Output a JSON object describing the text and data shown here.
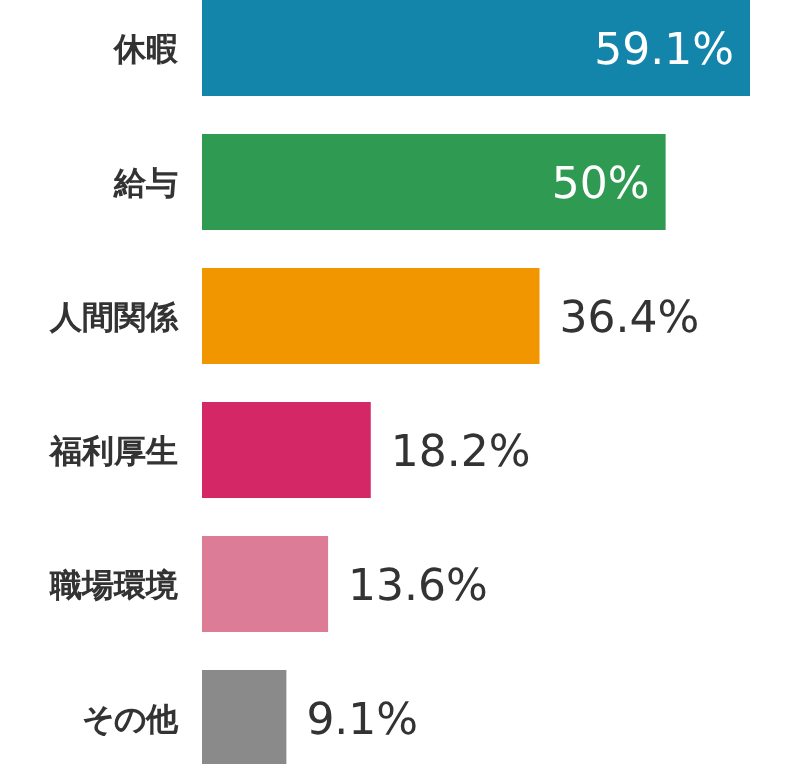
{
  "chart_data": {
    "type": "bar",
    "orientation": "horizontal",
    "categories": [
      "休暇",
      "給与",
      "人間関係",
      "福利厚生",
      "職場環境",
      "その他"
    ],
    "values": [
      59.1,
      50,
      36.4,
      18.2,
      13.6,
      9.1
    ],
    "value_labels": [
      "59.1%",
      "50%",
      "36.4%",
      "18.2%",
      "13.6%",
      "9.1%"
    ],
    "colors": [
      "#1385ab",
      "#2f9a52",
      "#f29600",
      "#d42766",
      "#dc7c96",
      "#8a8a8a"
    ]
  }
}
